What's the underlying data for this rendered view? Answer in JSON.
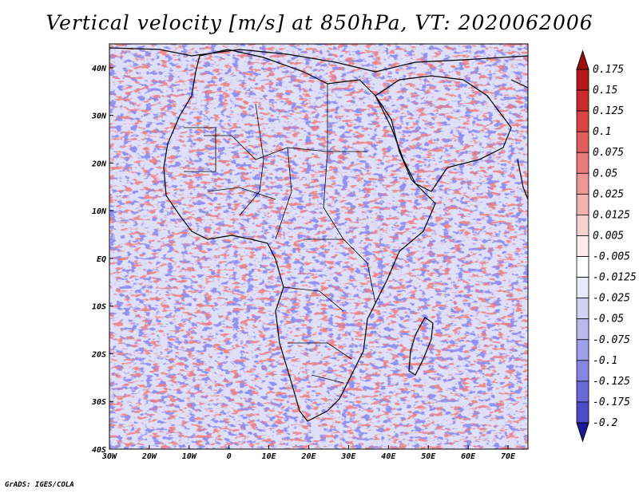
{
  "title": "Vertical velocity [m/s] at 850hPa, VT: 2020062006",
  "footer": "GrADS: IGES/COLA",
  "chart_data": {
    "type": "heatmap",
    "variable": "Vertical velocity",
    "units": "m/s",
    "level": "850hPa",
    "valid_time": "2020062006",
    "x_ticks": [
      "30W",
      "20W",
      "10W",
      "0",
      "10E",
      "20E",
      "30E",
      "40E",
      "50E",
      "60E",
      "70E"
    ],
    "x_values": [
      -30,
      -20,
      -10,
      0,
      10,
      20,
      30,
      40,
      50,
      60,
      70
    ],
    "y_ticks": [
      "40N",
      "30N",
      "20N",
      "10N",
      "EQ",
      "10S",
      "20S",
      "30S",
      "40S"
    ],
    "y_values": [
      40,
      30,
      20,
      10,
      0,
      -10,
      -20,
      -30,
      -40
    ],
    "xlim": [
      -30,
      75
    ],
    "ylim": [
      -40,
      45
    ],
    "colorbar": {
      "levels": [
        "0.175",
        "0.15",
        "0.125",
        "0.1",
        "0.075",
        "0.05",
        "0.025",
        "0.0125",
        "0.005",
        "-0.005",
        "-0.0125",
        "-0.025",
        "-0.05",
        "-0.075",
        "-0.1",
        "-0.125",
        "-0.175",
        "-0.2"
      ],
      "colors": [
        "#b21818",
        "#c92a2a",
        "#d94444",
        "#e25e5e",
        "#e97a7a",
        "#ef9696",
        "#f4b3b3",
        "#f9d0d0",
        "#fdeaea",
        "#ffffff",
        "#e8e8fb",
        "#d2d2f6",
        "#b9b9f0",
        "#9f9feb",
        "#8585e3",
        "#6a6ad9",
        "#4c4cc9",
        "#2a2ab0"
      ],
      "top_arrow_color": "#9e1010",
      "bottom_arrow_color": "#1a1a99"
    }
  }
}
